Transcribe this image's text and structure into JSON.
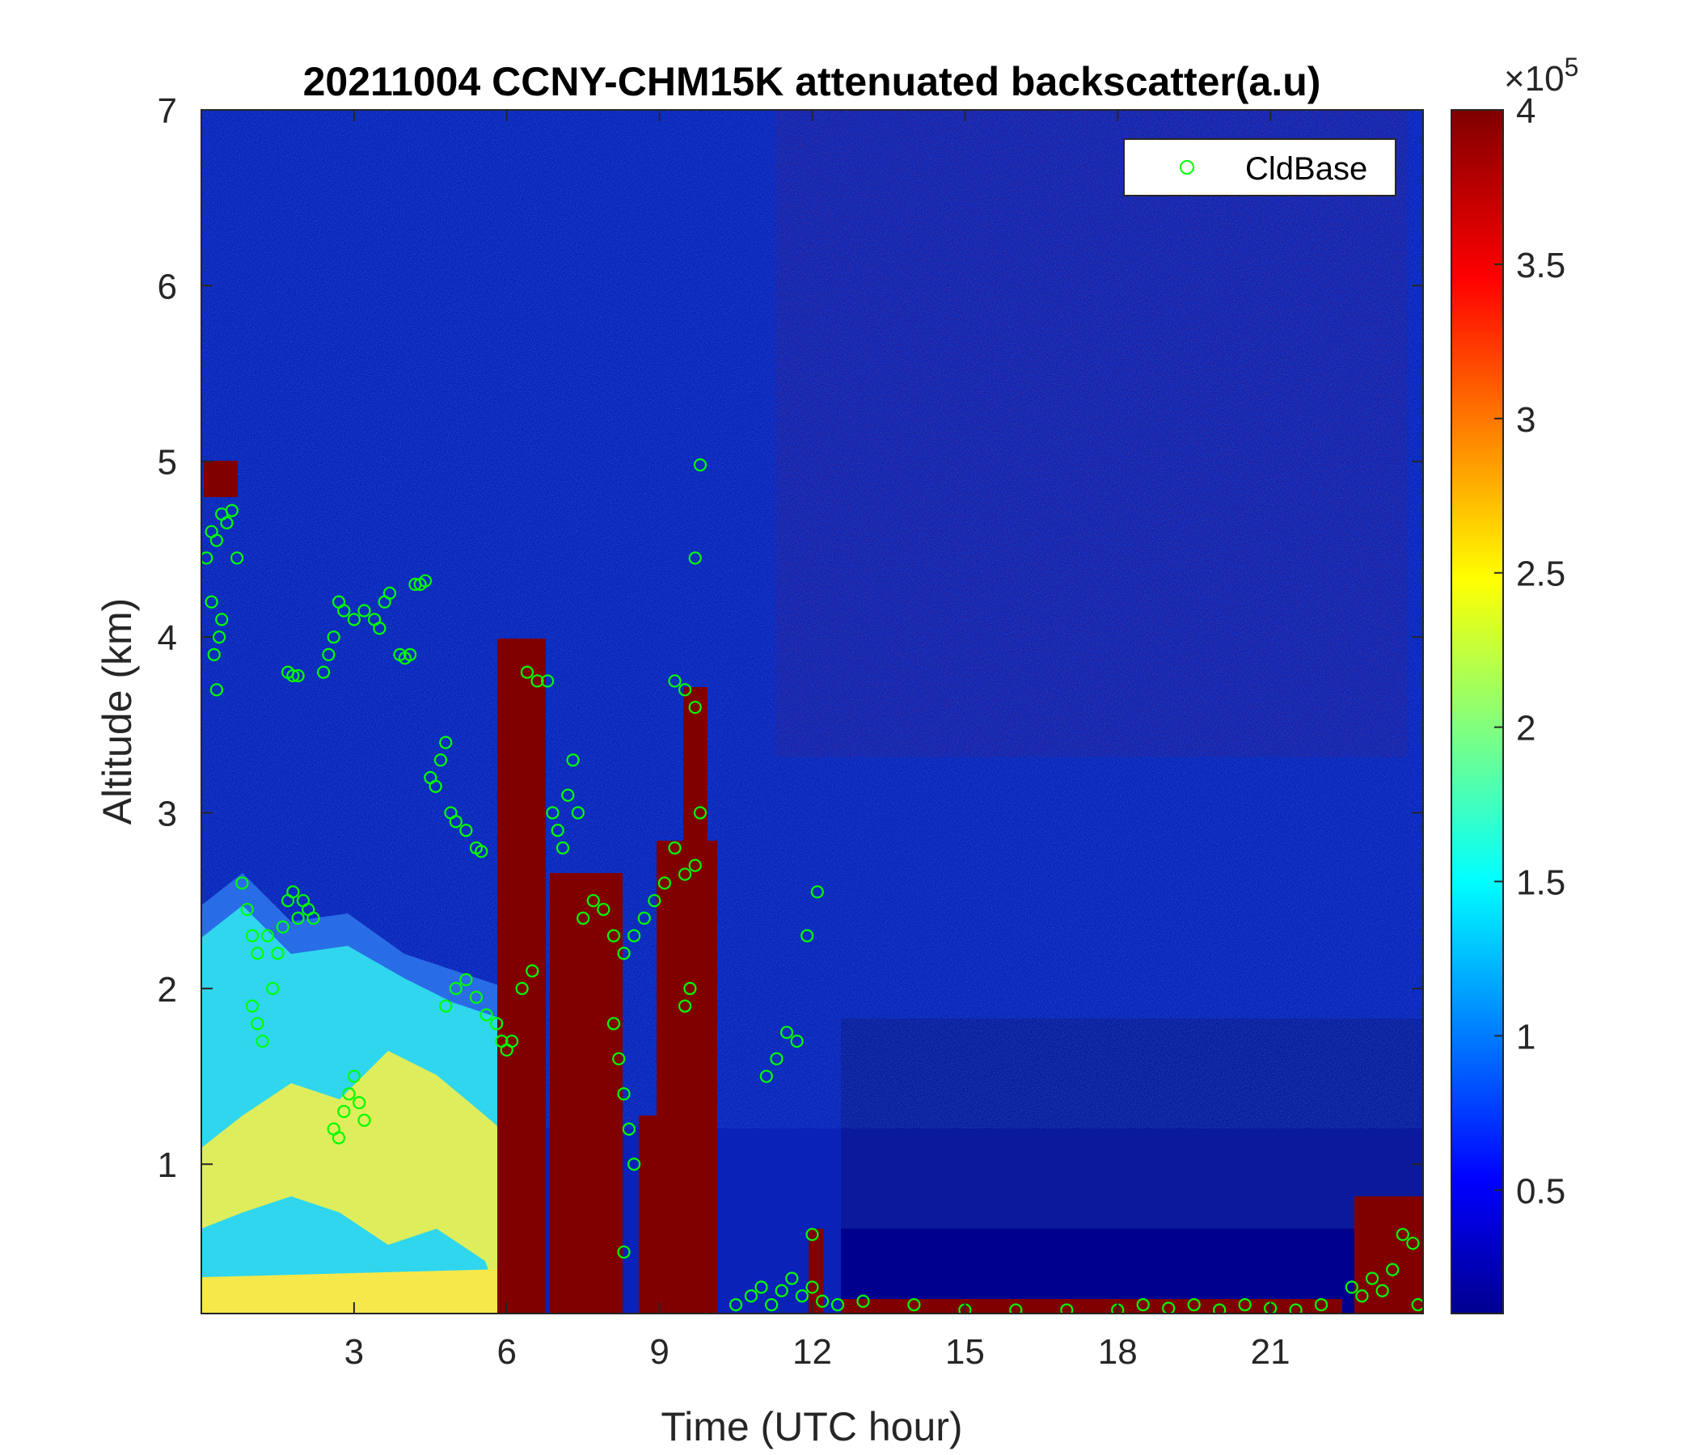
{
  "chart_data": {
    "type": "heatmap",
    "title": "20211004 CCNY-CHM15K attenuated backscatter(a.u)",
    "xlabel": "Time (UTC hour)",
    "ylabel": "Altitude (km)",
    "xlim": [
      0,
      24
    ],
    "ylim": [
      0.15,
      7
    ],
    "x_ticks": [
      3,
      6,
      9,
      12,
      15,
      18,
      21
    ],
    "y_ticks": [
      1,
      2,
      3,
      4,
      5,
      6,
      7
    ],
    "colorbar": {
      "colormap": "jet",
      "range": [
        0.1,
        4
      ],
      "ticks": [
        0.5,
        1,
        1.5,
        2,
        2.5,
        3,
        3.5,
        4
      ],
      "exponent_label": "×10",
      "exponent_power": "5"
    },
    "legend": {
      "placement": "top-right",
      "entries": [
        "CldBase"
      ]
    },
    "series": [
      {
        "name": "CldBase",
        "marker": "circle",
        "color": "#00ff00",
        "points": [
          [
            0.1,
            4.45
          ],
          [
            0.2,
            4.6
          ],
          [
            0.3,
            4.55
          ],
          [
            0.4,
            4.7
          ],
          [
            0.5,
            4.65
          ],
          [
            0.6,
            4.72
          ],
          [
            0.7,
            4.45
          ],
          [
            0.2,
            4.2
          ],
          [
            0.25,
            3.9
          ],
          [
            0.3,
            3.7
          ],
          [
            0.35,
            4.0
          ],
          [
            0.4,
            4.1
          ],
          [
            0.8,
            2.6
          ],
          [
            0.9,
            2.45
          ],
          [
            1.0,
            2.3
          ],
          [
            1.1,
            2.2
          ],
          [
            1.0,
            1.9
          ],
          [
            1.1,
            1.8
          ],
          [
            1.2,
            1.7
          ],
          [
            1.3,
            2.3
          ],
          [
            1.4,
            2.0
          ],
          [
            1.5,
            2.2
          ],
          [
            1.6,
            2.35
          ],
          [
            1.7,
            2.5
          ],
          [
            1.8,
            2.55
          ],
          [
            1.9,
            2.4
          ],
          [
            2.0,
            2.5
          ],
          [
            2.1,
            2.45
          ],
          [
            2.2,
            2.4
          ],
          [
            1.7,
            3.8
          ],
          [
            1.8,
            3.78
          ],
          [
            1.9,
            3.78
          ],
          [
            2.4,
            3.8
          ],
          [
            2.5,
            3.9
          ],
          [
            2.6,
            4.0
          ],
          [
            2.7,
            4.2
          ],
          [
            2.8,
            4.15
          ],
          [
            3.0,
            4.1
          ],
          [
            3.2,
            4.15
          ],
          [
            3.4,
            4.1
          ],
          [
            3.5,
            4.05
          ],
          [
            3.6,
            4.2
          ],
          [
            3.7,
            4.25
          ],
          [
            3.9,
            3.9
          ],
          [
            4.0,
            3.88
          ],
          [
            4.1,
            3.9
          ],
          [
            4.2,
            4.3
          ],
          [
            4.3,
            4.3
          ],
          [
            4.4,
            4.32
          ],
          [
            4.5,
            3.2
          ],
          [
            4.6,
            3.15
          ],
          [
            4.7,
            3.3
          ],
          [
            4.8,
            3.4
          ],
          [
            4.9,
            3.0
          ],
          [
            5.0,
            2.95
          ],
          [
            5.2,
            2.9
          ],
          [
            5.4,
            2.8
          ],
          [
            5.5,
            2.78
          ],
          [
            2.6,
            1.2
          ],
          [
            2.7,
            1.15
          ],
          [
            2.8,
            1.3
          ],
          [
            2.9,
            1.4
          ],
          [
            3.0,
            1.5
          ],
          [
            3.1,
            1.35
          ],
          [
            3.2,
            1.25
          ],
          [
            4.8,
            1.9
          ],
          [
            5.0,
            2.0
          ],
          [
            5.2,
            2.05
          ],
          [
            5.4,
            1.95
          ],
          [
            5.6,
            1.85
          ],
          [
            5.8,
            1.8
          ],
          [
            5.9,
            1.7
          ],
          [
            6.0,
            1.65
          ],
          [
            6.1,
            1.7
          ],
          [
            6.3,
            2.0
          ],
          [
            6.5,
            2.1
          ],
          [
            6.4,
            3.8
          ],
          [
            6.6,
            3.75
          ],
          [
            6.8,
            3.75
          ],
          [
            6.9,
            3.0
          ],
          [
            7.0,
            2.9
          ],
          [
            7.1,
            2.8
          ],
          [
            7.2,
            3.1
          ],
          [
            7.3,
            3.3
          ],
          [
            7.4,
            3.0
          ],
          [
            7.5,
            2.4
          ],
          [
            7.7,
            2.5
          ],
          [
            7.9,
            2.45
          ],
          [
            8.1,
            2.3
          ],
          [
            8.3,
            2.2
          ],
          [
            8.5,
            2.3
          ],
          [
            8.7,
            2.4
          ],
          [
            8.9,
            2.5
          ],
          [
            9.1,
            2.6
          ],
          [
            9.3,
            2.8
          ],
          [
            9.5,
            2.65
          ],
          [
            9.7,
            2.7
          ],
          [
            8.1,
            1.8
          ],
          [
            8.2,
            1.6
          ],
          [
            8.3,
            1.4
          ],
          [
            8.4,
            1.2
          ],
          [
            8.5,
            1.0
          ],
          [
            8.3,
            0.5
          ],
          [
            9.3,
            3.75
          ],
          [
            9.5,
            3.7
          ],
          [
            9.7,
            3.6
          ],
          [
            9.8,
            3.0
          ],
          [
            9.6,
            2.0
          ],
          [
            9.5,
            1.9
          ],
          [
            9.7,
            4.45
          ],
          [
            9.8,
            4.98
          ],
          [
            11.1,
            1.5
          ],
          [
            11.3,
            1.6
          ],
          [
            11.5,
            1.75
          ],
          [
            11.7,
            1.7
          ],
          [
            11.9,
            2.3
          ],
          [
            12.1,
            2.55
          ],
          [
            12.0,
            0.6
          ],
          [
            10.5,
            0.2
          ],
          [
            10.8,
            0.25
          ],
          [
            11.0,
            0.3
          ],
          [
            11.2,
            0.2
          ],
          [
            11.4,
            0.28
          ],
          [
            11.6,
            0.35
          ],
          [
            11.8,
            0.25
          ],
          [
            12.0,
            0.3
          ],
          [
            12.2,
            0.22
          ],
          [
            12.5,
            0.2
          ],
          [
            13.0,
            0.22
          ],
          [
            14.0,
            0.2
          ],
          [
            15.0,
            0.17
          ],
          [
            16.0,
            0.17
          ],
          [
            17.0,
            0.17
          ],
          [
            18.0,
            0.17
          ],
          [
            18.5,
            0.2
          ],
          [
            19.0,
            0.18
          ],
          [
            19.5,
            0.2
          ],
          [
            20.0,
            0.17
          ],
          [
            20.5,
            0.2
          ],
          [
            21.0,
            0.18
          ],
          [
            21.5,
            0.17
          ],
          [
            22.0,
            0.2
          ],
          [
            22.6,
            0.3
          ],
          [
            22.8,
            0.25
          ],
          [
            23.0,
            0.35
          ],
          [
            23.2,
            0.28
          ],
          [
            23.4,
            0.4
          ],
          [
            23.6,
            0.6
          ],
          [
            23.8,
            0.55
          ],
          [
            23.9,
            0.2
          ]
        ]
      }
    ]
  }
}
